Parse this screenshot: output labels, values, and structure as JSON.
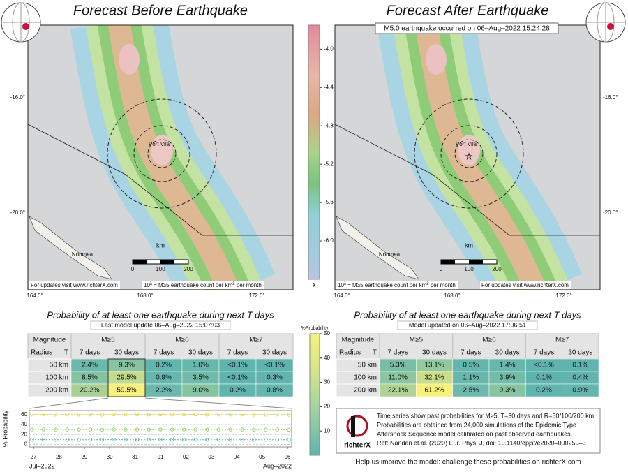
{
  "left_map": {
    "title": "Forecast Before Earthquake",
    "lat_labels": [
      "-16.0°",
      "-20.0°"
    ],
    "lon_labels": [
      "164.0°",
      "168.0°",
      "172.0°"
    ],
    "city": "Port Vila",
    "city2": "Noumea",
    "scale_unit": "km",
    "scale_ticks": [
      "0",
      "100",
      "200"
    ],
    "note_left": "For updates visit www.richterX.com",
    "note_right": [
      "10",
      "λ",
      " = M≥5 earthquake count per km",
      "2",
      " per month"
    ]
  },
  "right_map": {
    "title": "Forecast After Earthquake",
    "banner": "M5.0 earthquake occurred on 06–Aug–2022 15:24:28",
    "lat_labels": [
      "-16.0°",
      "-20.0°"
    ],
    "lon_labels": [
      "164.0°",
      "168.0°",
      "172.0°"
    ],
    "city": "Port Vila",
    "city2": "Noumea",
    "scale_unit": "km",
    "scale_ticks": [
      "0",
      "100",
      "200"
    ],
    "note_left": "For updates visit www.richterX.com",
    "note_right": [
      "10",
      "λ",
      " = M≥5 earthquake count per km",
      "2",
      " per month"
    ]
  },
  "colorbar": {
    "range": [
      -6.4,
      -3.75
    ],
    "ticks": [
      {
        "value": -4,
        "label": "-4.0"
      },
      {
        "value": -4.4,
        "label": "-4.4"
      },
      {
        "value": -4.8,
        "label": "-4.8"
      },
      {
        "value": -5.2,
        "label": "-5.2"
      },
      {
        "value": -5.6,
        "label": "-5.6"
      },
      {
        "value": -6,
        "label": "-6.0"
      }
    ],
    "label": "λ"
  },
  "left_table": {
    "title": "Probability of at least one earthquake during next T days",
    "subtitle": "Last model update 06–Aug–2022 15:07:03",
    "header": [
      "Magnitude",
      "M≥5",
      "M≥6",
      "M≥7"
    ],
    "subheader": [
      "Radius",
      "T"
    ],
    "periods": [
      "7 days",
      "30 days",
      "7 days",
      "30 days",
      "7 days",
      "30 days"
    ],
    "rows": [
      [
        "50 km",
        "2.4%",
        "9.3%",
        "0.2%",
        "1.0%",
        "<0.1%",
        "<0.1%"
      ],
      [
        "100 km",
        "8.5%",
        "29.5%",
        "0.9%",
        "3.5%",
        "<0.1%",
        "0.3%"
      ],
      [
        "200 km",
        "20.2%",
        "59.5%",
        "2.2%",
        "9.0%",
        "0.2%",
        "0.8%"
      ]
    ]
  },
  "right_table": {
    "title": "Probability of at least one earthquake during next T days",
    "subtitle": "Model updated on 06–Aug–2022 17:06:51",
    "header": [
      "Magnitude",
      "M≥5",
      "M≥6",
      "M≥7"
    ],
    "subheader": [
      "Radius",
      "T"
    ],
    "periods": [
      "7 days",
      "30 days",
      "7 days",
      "30 days",
      "7 days",
      "30 days"
    ],
    "rows": [
      [
        "50 km",
        "5.3%",
        "13.1%",
        "0.5%",
        "1.4%",
        "<0.1%",
        "0.1%"
      ],
      [
        "100 km",
        "11.0%",
        "32.1%",
        "1.1%",
        "3.9%",
        "0.1%",
        "0.4%"
      ],
      [
        "200 km",
        "22.1%",
        "61.2%",
        "2.5%",
        "9.3%",
        "0.2%",
        "0.9%"
      ]
    ]
  },
  "prob_colorbar": {
    "label": "%Probability",
    "range": [
      0,
      50
    ],
    "ticks": [
      10,
      20,
      30,
      40,
      50
    ]
  },
  "timeseries": {
    "y_label": "% Probability",
    "ylim": [
      -5,
      68
    ],
    "yticks": [
      0,
      20,
      40,
      60
    ],
    "x_labels": [
      "27",
      "28",
      "29",
      "30",
      "31",
      "01",
      "02",
      "03",
      "04",
      "05",
      "06"
    ],
    "months": [
      "Jul–2022",
      "Aug–2022"
    ],
    "series": [
      {
        "color": "#e6d84a",
        "values": [
          60,
          60.2,
          59.8,
          60.1,
          59.9,
          60,
          59.7,
          60.1,
          59.9,
          60,
          59.8,
          60.2,
          60,
          59.9,
          60.1,
          59.8,
          60,
          59.9,
          60.1,
          59.7,
          59.9,
          60,
          59.5
        ]
      },
      {
        "color": "#9ccf6a",
        "values": [
          30,
          30.2,
          29.8,
          30.1,
          29.9,
          30,
          29.7,
          30.1,
          29.9,
          30,
          29.8,
          30.2,
          30,
          29.9,
          30.1,
          29.8,
          30,
          29.9,
          30.1,
          29.7,
          29.9,
          30,
          29.5
        ]
      },
      {
        "color": "#5fb4b0",
        "values": [
          9.5,
          9.6,
          9.4,
          9.5,
          9.3,
          9.5,
          9.4,
          9.6,
          9.5,
          9.4,
          9.5,
          9.6,
          9.5,
          9.4,
          9.5,
          9.3,
          9.5,
          9.4,
          9.5,
          9.4,
          9.5,
          9.4,
          9.3
        ]
      }
    ]
  },
  "info": {
    "lines": [
      "Time series show past probabilities for M≥5, T=30 days and R=50/100/200 km.",
      "Probabilities are obtained from 24,000 simulations of the Epidemic Type",
      "Aftershock Sequence model calibrated on past observed earthquakes.",
      "Ref: Nandan et.al. (2020) Eur. Phys. J, doi: 10.1140/epjst/e2020–000259–3"
    ],
    "logo": "richterX",
    "link": "Help us improve the model: challenge these probabilities on richterX.com"
  }
}
